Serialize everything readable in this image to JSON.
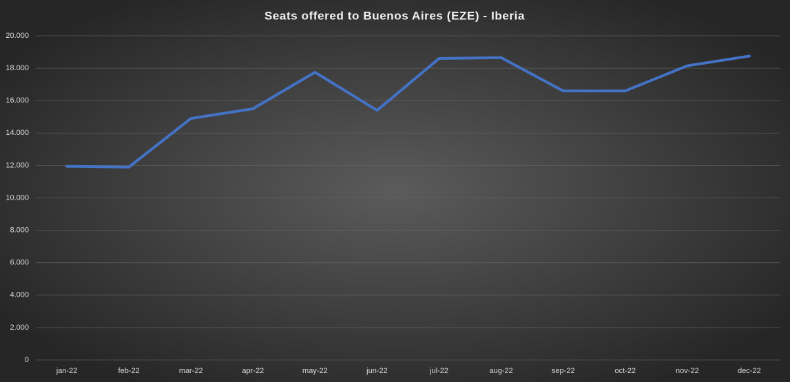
{
  "chart_data": {
    "type": "line",
    "title": "Seats offered to Buenos Aires (EZE) - Iberia",
    "categories": [
      "jan-22",
      "feb-22",
      "mar-22",
      "apr-22",
      "may-22",
      "jun-22",
      "jul-22",
      "aug-22",
      "sep-22",
      "oct-22",
      "nov-22",
      "dec-22"
    ],
    "series": [
      {
        "color": "#4472c4",
        "values": [
          11950,
          11900,
          14900,
          15500,
          17750,
          15400,
          18600,
          18650,
          16600,
          16600,
          18150,
          18750
        ]
      }
    ],
    "ylim": [
      0,
      20000
    ],
    "yticks": [
      0,
      {
        "value": 2000,
        "label": "2.000"
      },
      {
        "value": 4000,
        "label": "4.000"
      },
      {
        "value": 6000,
        "label": "6.000"
      },
      {
        "value": 8000,
        "label": "8.000"
      },
      {
        "value": 10000,
        "label": "10.000"
      },
      {
        "value": 12000,
        "label": "12.000"
      },
      {
        "value": 14000,
        "label": "14.000"
      },
      {
        "value": 16000,
        "label": "16.000"
      },
      {
        "value": 18000,
        "label": "18.000"
      },
      {
        "value": 20000,
        "label": "20.000"
      }
    ],
    "grid": true
  }
}
